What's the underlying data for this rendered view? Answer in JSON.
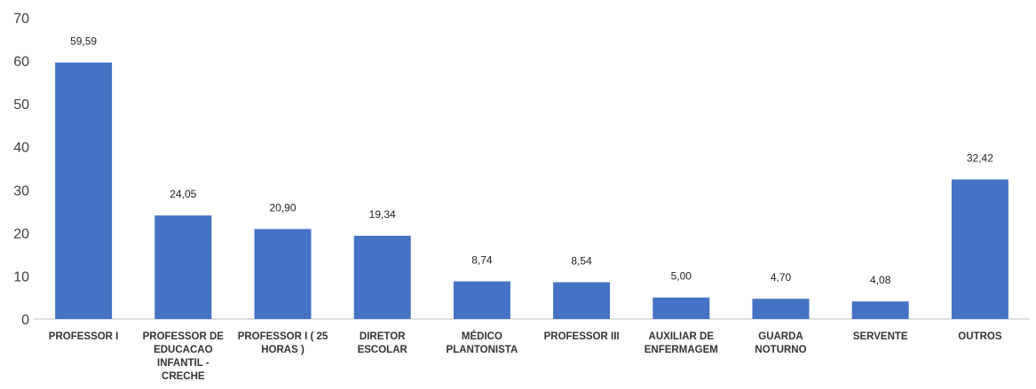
{
  "chart_data": {
    "type": "bar",
    "title": "",
    "xlabel": "",
    "ylabel": "",
    "ylim": [
      0,
      70
    ],
    "yticks": [
      0,
      10,
      20,
      30,
      40,
      50,
      60,
      70
    ],
    "grid": false,
    "legend": "none",
    "bar_color": "#4472c4",
    "categories": [
      "PROFESSOR I",
      "PROFESSOR DE EDUCACAO INFANTIL - CRECHE",
      "PROFESSOR I ( 25 HORAS )",
      "DIRETOR ESCOLAR",
      "MÉDICO PLANTONISTA",
      "PROFESSOR III",
      "AUXILIAR DE ENFERMAGEM",
      "GUARDA NOTURNO",
      "SERVENTE",
      "OUTROS"
    ],
    "category_lines": [
      [
        "PROFESSOR I"
      ],
      [
        "PROFESSOR DE",
        "EDUCACAO",
        "INFANTIL -",
        "CRECHE"
      ],
      [
        "PROFESSOR I ( 25",
        "HORAS )"
      ],
      [
        "DIRETOR",
        "ESCOLAR"
      ],
      [
        "MÉDICO",
        "PLANTONISTA"
      ],
      [
        "PROFESSOR III"
      ],
      [
        "AUXILIAR DE",
        "ENFERMAGEM"
      ],
      [
        "GUARDA",
        "NOTURNO"
      ],
      [
        "SERVENTE"
      ],
      [
        "OUTROS"
      ]
    ],
    "values": [
      59.59,
      24.05,
      20.9,
      19.34,
      8.74,
      8.54,
      5.0,
      4.7,
      4.08,
      32.42
    ],
    "value_labels": [
      "59,59",
      "24,05",
      "20,90",
      "19,34",
      "8,74",
      "8,54",
      "5,00",
      "4,70",
      "4,08",
      "32,42"
    ]
  }
}
